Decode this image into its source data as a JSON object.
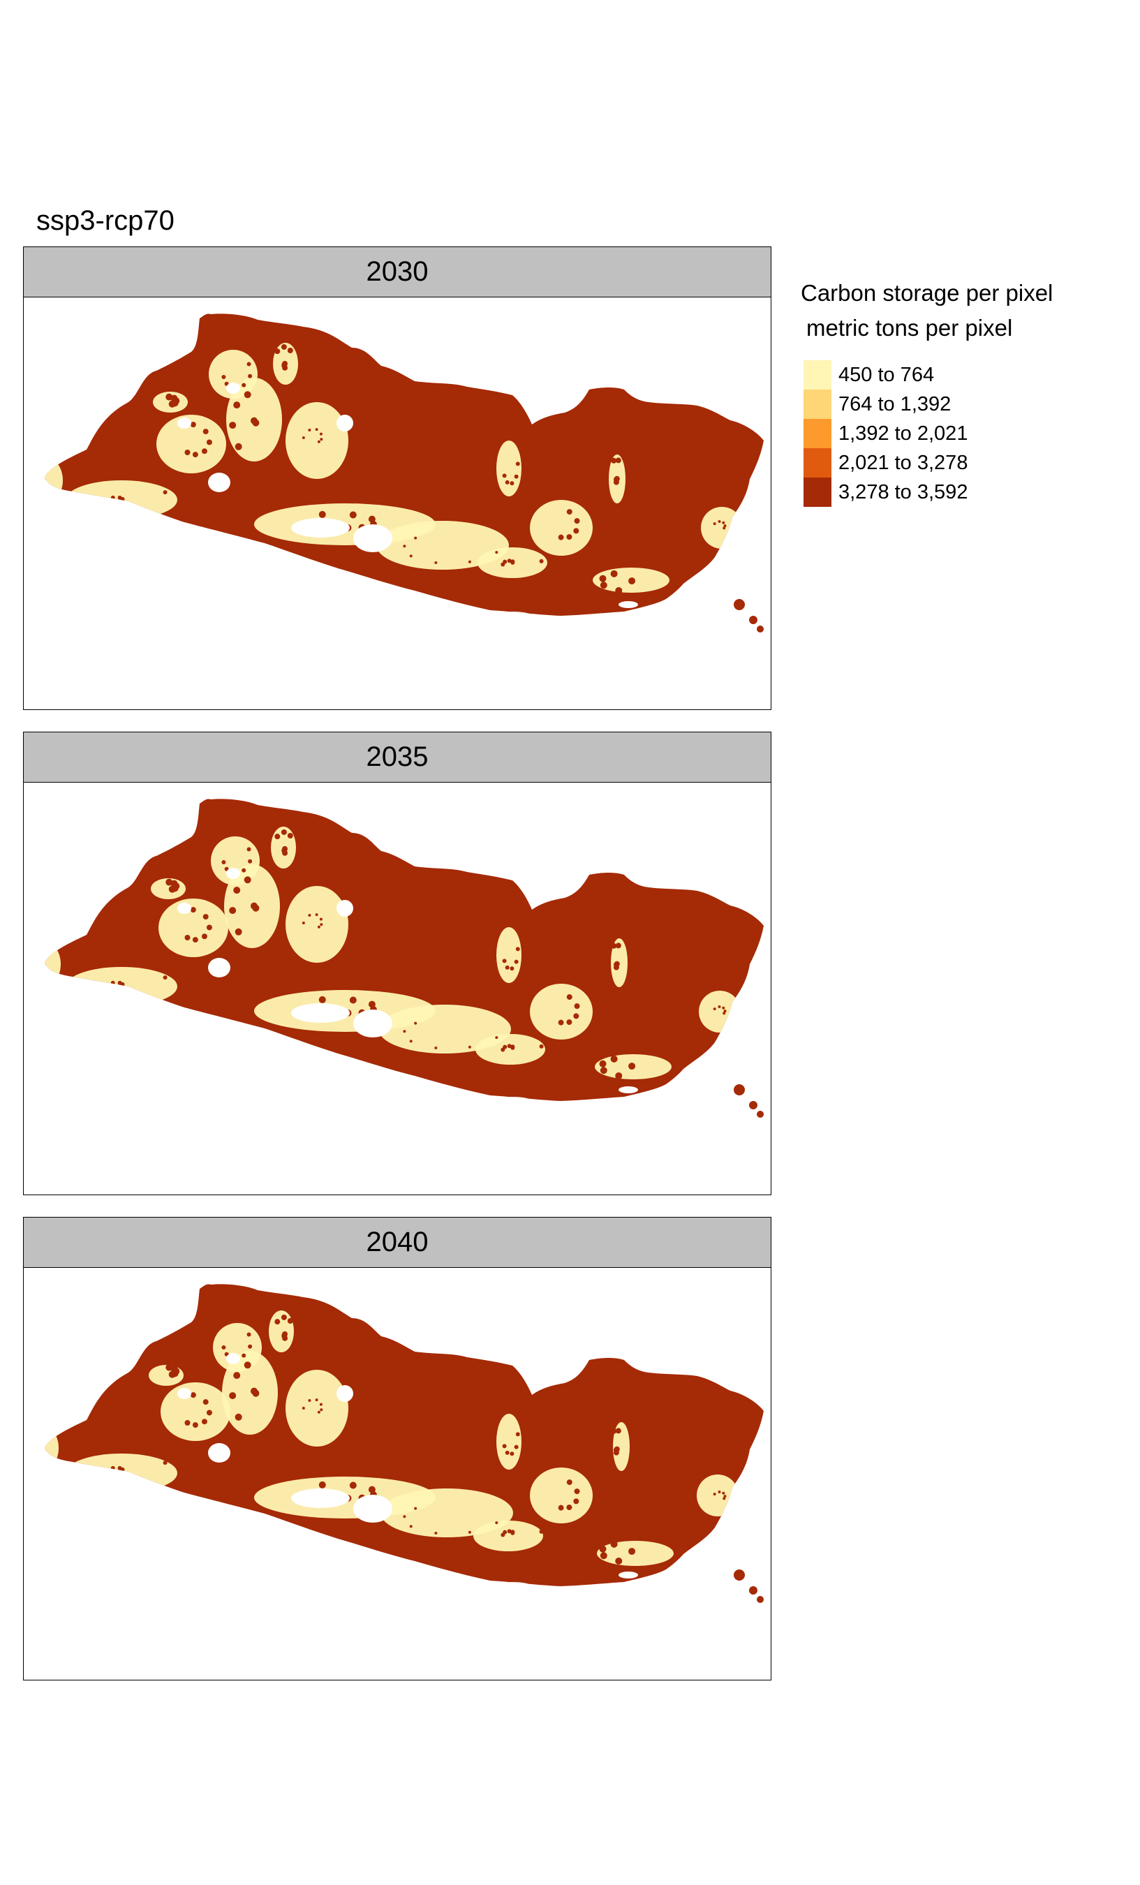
{
  "title": "ssp3-rcp70",
  "panels": [
    {
      "label": "2030"
    },
    {
      "label": "2035"
    },
    {
      "label": "2040"
    }
  ],
  "legend": {
    "title": "Carbon storage per pixel",
    "subtitle": "metric tons per pixel",
    "items": [
      {
        "label": "450 to 764",
        "color": "#fff5b4"
      },
      {
        "label": "764 to 1,392",
        "color": "#fed676"
      },
      {
        "label": "1,392 to 2,021",
        "color": "#fd9a2e"
      },
      {
        "label": "2,021 to 3,278",
        "color": "#e05b10"
      },
      {
        "label": "3,278 to 3,592",
        "color": "#a52a06"
      }
    ]
  },
  "colors": {
    "high": "#a52a06",
    "low": "#fff5b4",
    "strip": "#c0c0c0"
  }
}
